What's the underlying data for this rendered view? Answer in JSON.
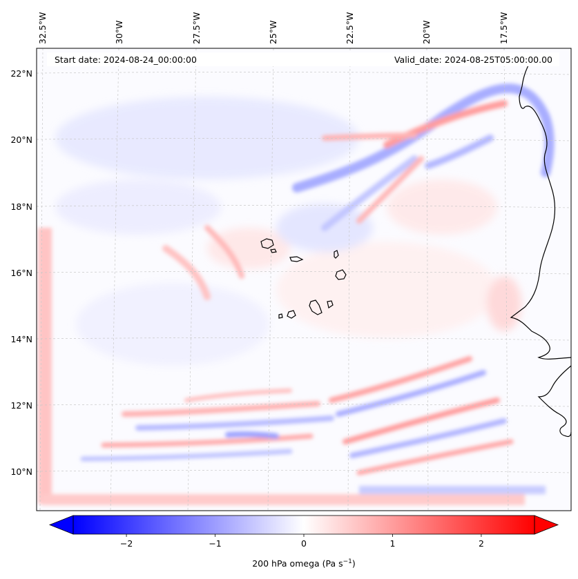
{
  "map": {
    "start_date": "Start date: 2024-08-24_00:00:00",
    "valid_date": "Valid_date: 2024-08-25T05:00:00.00",
    "lon_labels": [
      "32.5°W",
      "30°W",
      "27.5°W",
      "25°W",
      "22.5°W",
      "20°W",
      "17.5°W"
    ],
    "lat_labels": [
      "22°N",
      "20°N",
      "18°N",
      "16°N",
      "14°N",
      "12°N",
      "10°N"
    ]
  },
  "colorbar": {
    "label": "200 hPa omega (Pa s",
    "label_superscript": "−1",
    "label_close": ")",
    "ticks": [
      "−2",
      "−1",
      "0",
      "1",
      "2"
    ],
    "tick_values": [
      -2,
      -1,
      0,
      1,
      2
    ],
    "range": [
      -2.6,
      2.6
    ],
    "colormap": "bwr",
    "colors": {
      "negative": "#0000ff",
      "zero": "#ffffff",
      "positive": "#ff0000"
    }
  },
  "field_features": [
    {
      "kind": "negative-band",
      "value": -0.6
    },
    {
      "kind": "positive-band",
      "value": 0.8
    },
    {
      "kind": "negative-patch",
      "value": -0.3
    },
    {
      "kind": "positive-patch",
      "value": 0.5
    }
  ]
}
